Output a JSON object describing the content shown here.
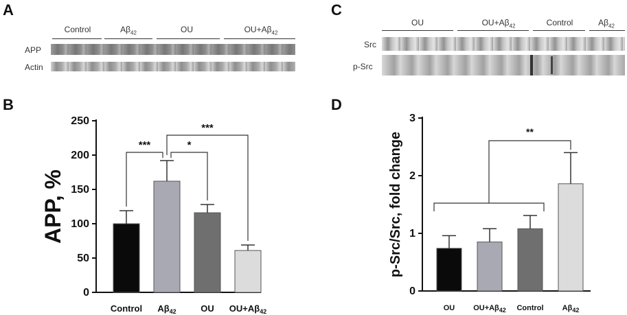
{
  "panels": {
    "a": {
      "letter": "A",
      "groups": [
        "Control",
        "Aβ42",
        "OU",
        "OU+Aβ42"
      ],
      "rows": [
        "APP",
        "Actin"
      ]
    },
    "c": {
      "letter": "C",
      "groups": [
        "OU",
        "OU+Aβ42",
        "Control",
        "Aβ42"
      ],
      "rows": [
        "Src",
        "p-Src"
      ]
    },
    "b": {
      "letter": "B"
    },
    "d": {
      "letter": "D"
    }
  },
  "chart_data": [
    {
      "type": "bar",
      "panel": "B",
      "categories": [
        "Control",
        "Aβ42",
        "OU",
        "OU+Aβ42"
      ],
      "values": [
        100,
        162,
        116,
        61
      ],
      "errors": [
        19,
        30,
        12,
        8
      ],
      "colors": [
        "#0a0a0a",
        "#a9a9b3",
        "#6f6f6f",
        "#dcdcdc"
      ],
      "ylabel": "APP, %",
      "ylim": [
        0,
        250
      ],
      "yticks": [
        0,
        50,
        100,
        150,
        200,
        250
      ],
      "significance": [
        {
          "from": 0,
          "to": 1,
          "label": "***"
        },
        {
          "from": 1,
          "to": 2,
          "label": "*"
        },
        {
          "from": 1,
          "to": 3,
          "label": "***"
        }
      ]
    },
    {
      "type": "bar",
      "panel": "D",
      "categories": [
        "OU",
        "OU+Aβ42",
        "Control",
        "Aβ42"
      ],
      "values": [
        0.74,
        0.85,
        1.08,
        1.86
      ],
      "errors": [
        0.22,
        0.23,
        0.23,
        0.54
      ],
      "colors": [
        "#0a0a0a",
        "#a9a9b3",
        "#6f6f6f",
        "#dcdcdc"
      ],
      "ylabel": "p-Src/Src, fold change",
      "ylim": [
        0,
        3
      ],
      "yticks": [
        0,
        1,
        2,
        3
      ],
      "significance": [
        {
          "from_group": [
            0,
            2
          ],
          "to": 3,
          "label": "**"
        }
      ]
    }
  ]
}
